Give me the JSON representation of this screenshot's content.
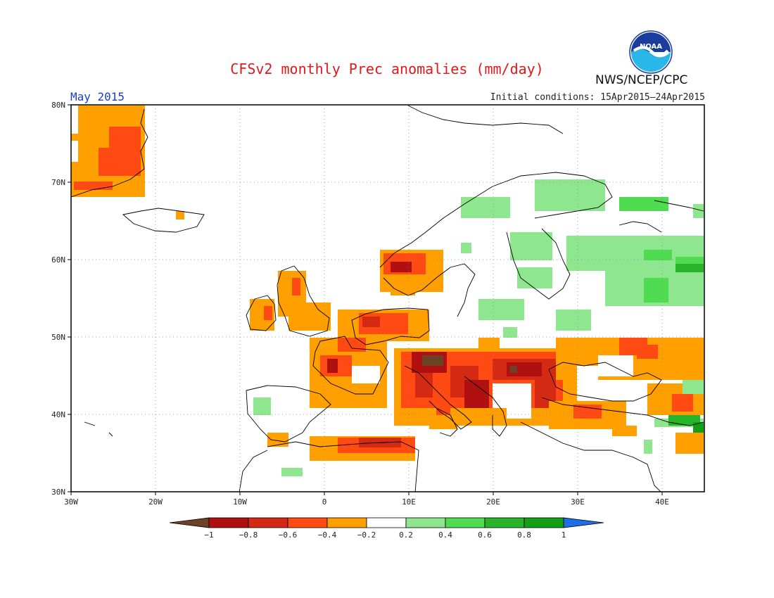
{
  "title": "CFSv2 monthly Prec anomalies (mm/day)",
  "month": "May 2015",
  "initial_conditions": "Initial conditions: 15Apr2015–24Apr2015",
  "agency": "NWS/NCEP/CPC",
  "logo_text": "NOAA",
  "axes": {
    "lat_ticks": [
      "30N",
      "40N",
      "50N",
      "60N",
      "70N",
      "80N"
    ],
    "lon_ticks": [
      "30W",
      "20W",
      "10W",
      "0",
      "10E",
      "20E",
      "30E",
      "40E"
    ],
    "lon_range": [
      -30,
      45
    ],
    "lat_range": [
      30,
      80
    ],
    "grid": "dotted"
  },
  "colorbar": {
    "labels": [
      "−1",
      "−0.8",
      "−0.6",
      "−0.4",
      "−0.2",
      "0.2",
      "0.4",
      "0.6",
      "0.8",
      "1"
    ],
    "colors": [
      "#6b4226",
      "#b01010",
      "#d42a14",
      "#ff4a14",
      "#ffa000",
      "#ffffff",
      "#8ee68e",
      "#50dc50",
      "#28b428",
      "#14a014",
      "#1e6ee6"
    ]
  },
  "chart_data": {
    "type": "heatmap",
    "variable": "Precipitation anomaly (mm/day)",
    "period": "May 2015",
    "regions": [
      {
        "area": "Greenland east coast",
        "anomaly_range": [
          -0.6,
          -0.2
        ]
      },
      {
        "area": "Western Ireland & UK",
        "anomaly_range": [
          -0.6,
          -0.2
        ]
      },
      {
        "area": "France",
        "anomaly_range": [
          -0.8,
          -0.2
        ]
      },
      {
        "area": "Benelux / North Germany",
        "anomaly_range": [
          -0.6,
          -0.2
        ]
      },
      {
        "area": "Southern Norway",
        "anomaly_range": [
          -0.8,
          -0.2
        ]
      },
      {
        "area": "Alps / North Italy",
        "anomaly_range": [
          -1.0,
          -0.6
        ]
      },
      {
        "area": "Balkans / Adriatic",
        "anomaly_range": [
          -1.0,
          -0.4
        ]
      },
      {
        "area": "Romania / Black Sea",
        "anomaly_range": [
          -0.8,
          -0.2
        ]
      },
      {
        "area": "North Algeria / Tunisia",
        "anomaly_range": [
          -0.8,
          -0.2
        ]
      },
      {
        "area": "Scandinavia / Finland",
        "anomaly_range": [
          0.2,
          0.4
        ]
      },
      {
        "area": "Western Russia",
        "anomaly_range": [
          0.2,
          0.6
        ]
      },
      {
        "area": "Caucasus / SE corner",
        "anomaly_range": [
          0.4,
          0.8
        ]
      }
    ]
  }
}
